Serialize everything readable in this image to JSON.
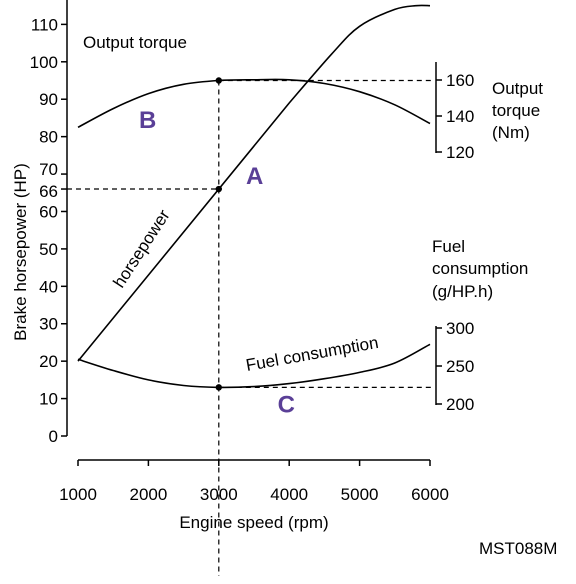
{
  "chart_data": {
    "type": "line",
    "xlabel": "Engine speed (rpm)",
    "ylabel": "Brake horsepower (HP)",
    "x_ticks": [
      1000,
      2000,
      3000,
      4000,
      5000,
      6000
    ],
    "y_ticks": [
      0,
      10,
      20,
      30,
      40,
      50,
      60,
      66,
      70,
      80,
      90,
      100,
      110
    ],
    "xlim": [
      1000,
      6000
    ],
    "ylim": [
      0,
      115
    ],
    "torque_axis": {
      "title_lines": [
        "Output",
        "torque",
        "(Nm)"
      ],
      "ticks": [
        "160",
        "140",
        "120"
      ]
    },
    "fuel_axis": {
      "title_lines": [
        "Fuel",
        "consumption",
        "(g/HP.h)"
      ],
      "ticks": [
        "300",
        "250",
        "200"
      ]
    },
    "series": [
      {
        "name": "horsepower",
        "x": [
          1000,
          2000,
          3000,
          4000,
          4600,
          5000,
          5500,
          5800,
          6000
        ],
        "y": [
          20,
          43,
          66,
          89,
          102,
          109.5,
          114,
          115,
          115
        ]
      },
      {
        "name": "Output torque",
        "x": [
          1000,
          1500,
          2000,
          2500,
          3000,
          3500,
          4000,
          4500,
          5000,
          5500,
          6000
        ],
        "y": [
          82.5,
          87.5,
          91.5,
          94,
          95,
          95.2,
          95.2,
          94.2,
          92,
          88.5,
          83.5
        ]
      },
      {
        "name": "Fuel consumption",
        "x": [
          1000,
          1500,
          2000,
          2500,
          3000,
          3500,
          4000,
          4500,
          5000,
          5500,
          6000
        ],
        "y": [
          20.5,
          17.5,
          15,
          13.5,
          13,
          13.2,
          14,
          15.3,
          17,
          19.5,
          24.5
        ]
      }
    ],
    "reference_lines": {
      "x": 3000,
      "y_horsepower": 66,
      "y_torque": 95,
      "y_fuel": 13
    },
    "point_labels": [
      {
        "label": "A",
        "x": 3500,
        "y": 70
      },
      {
        "label": "B",
        "x": 1980,
        "y": 85
      },
      {
        "label": "C",
        "x": 3950,
        "y": 9
      }
    ],
    "figure_code": "MST088M"
  }
}
